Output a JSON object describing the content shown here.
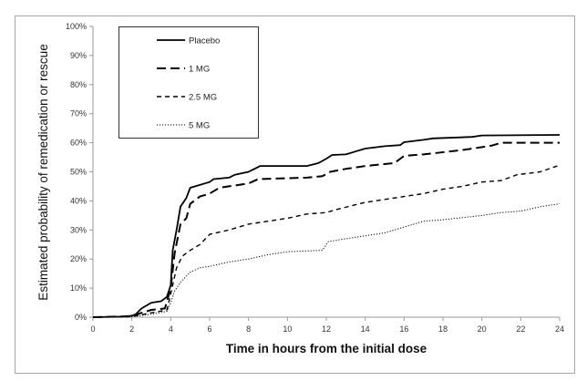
{
  "chart_data": {
    "type": "line",
    "title": "",
    "xlabel": "Time in hours from the initial dose",
    "ylabel": "Estimated probability of remedication or rescue",
    "xlim": [
      0,
      24
    ],
    "ylim": [
      0,
      100
    ],
    "x_ticks": [
      "0",
      "2",
      "4",
      "6",
      "8",
      "10",
      "12",
      "14",
      "16",
      "18",
      "20",
      "22",
      "24"
    ],
    "y_ticks": [
      "0%",
      "10%",
      "20%",
      "30%",
      "40%",
      "50%",
      "60%",
      "70%",
      "80%",
      "90%",
      "100%"
    ],
    "grid": false,
    "legend_position": "top-left",
    "series": [
      {
        "name": "Placebo",
        "style": "solid",
        "color": "#000000",
        "points": [
          [
            0,
            0
          ],
          [
            1.5,
            0.2
          ],
          [
            2,
            0.5
          ],
          [
            2.2,
            1
          ],
          [
            2.5,
            3
          ],
          [
            3,
            5
          ],
          [
            3.5,
            5.5
          ],
          [
            3.8,
            7
          ],
          [
            4,
            11
          ],
          [
            4.1,
            23
          ],
          [
            4.3,
            30
          ],
          [
            4.5,
            38
          ],
          [
            4.8,
            41
          ],
          [
            5,
            44.5
          ],
          [
            5.5,
            45.5
          ],
          [
            6,
            46.5
          ],
          [
            6.2,
            47.5
          ],
          [
            7,
            48
          ],
          [
            7.3,
            49
          ],
          [
            8,
            50
          ],
          [
            8.3,
            51
          ],
          [
            8.6,
            52
          ],
          [
            11,
            52
          ],
          [
            11.6,
            53
          ],
          [
            12,
            54.5
          ],
          [
            12.3,
            55.8
          ],
          [
            13,
            56
          ],
          [
            13.5,
            57
          ],
          [
            14,
            58
          ],
          [
            15,
            58.8
          ],
          [
            15.8,
            59.2
          ],
          [
            16,
            60.2
          ],
          [
            17,
            61
          ],
          [
            17.5,
            61.5
          ],
          [
            19.5,
            62
          ],
          [
            20,
            62.5
          ],
          [
            24,
            62.7
          ]
        ]
      },
      {
        "name": "1 MG",
        "style": "longdash",
        "color": "#000000",
        "points": [
          [
            0,
            0
          ],
          [
            2,
            0.3
          ],
          [
            2.5,
            1.5
          ],
          [
            3,
            2.5
          ],
          [
            3.7,
            3
          ],
          [
            4,
            10
          ],
          [
            4.2,
            22
          ],
          [
            4.5,
            32
          ],
          [
            4.8,
            34
          ],
          [
            5,
            39
          ],
          [
            5.5,
            41.5
          ],
          [
            6,
            42.5
          ],
          [
            6.5,
            44.5
          ],
          [
            7,
            45
          ],
          [
            8,
            46
          ],
          [
            8.5,
            47.5
          ],
          [
            11,
            48
          ],
          [
            11.8,
            48.5
          ],
          [
            12.2,
            50
          ],
          [
            13,
            51
          ],
          [
            14,
            52
          ],
          [
            15.5,
            53
          ],
          [
            16,
            55.5
          ],
          [
            17,
            56
          ],
          [
            19,
            57.5
          ],
          [
            20.5,
            59
          ],
          [
            21,
            60
          ],
          [
            24,
            60
          ]
        ]
      },
      {
        "name": "2.5 MG",
        "style": "dash",
        "color": "#000000",
        "points": [
          [
            0,
            0
          ],
          [
            2,
            0.2
          ],
          [
            3,
            1.5
          ],
          [
            3.8,
            2.5
          ],
          [
            4,
            8
          ],
          [
            4.3,
            17
          ],
          [
            4.6,
            21
          ],
          [
            5,
            23
          ],
          [
            5.5,
            25
          ],
          [
            6,
            28.5
          ],
          [
            7,
            30
          ],
          [
            7.5,
            31
          ],
          [
            8,
            32
          ],
          [
            9,
            33
          ],
          [
            10,
            34
          ],
          [
            11,
            35.5
          ],
          [
            12,
            36
          ],
          [
            12.5,
            37
          ],
          [
            14,
            39.5
          ],
          [
            15,
            40.5
          ],
          [
            16,
            41.5
          ],
          [
            17,
            42.5
          ],
          [
            18,
            44
          ],
          [
            19,
            45
          ],
          [
            20,
            46.5
          ],
          [
            21,
            47
          ],
          [
            21.8,
            49
          ],
          [
            23,
            50
          ],
          [
            24,
            52.3
          ]
        ]
      },
      {
        "name": "5 MG",
        "style": "dot",
        "color": "#000000",
        "points": [
          [
            0,
            0
          ],
          [
            2,
            0.2
          ],
          [
            3,
            1
          ],
          [
            3.8,
            2
          ],
          [
            4,
            5
          ],
          [
            4.2,
            9
          ],
          [
            4.5,
            12
          ],
          [
            5,
            15.5
          ],
          [
            5.5,
            17
          ],
          [
            6,
            17.5
          ],
          [
            7,
            19
          ],
          [
            8,
            20
          ],
          [
            9,
            21.5
          ],
          [
            10,
            22.5
          ],
          [
            11.8,
            23
          ],
          [
            12.1,
            26
          ],
          [
            13,
            27
          ],
          [
            14,
            28
          ],
          [
            15,
            29
          ],
          [
            16,
            31
          ],
          [
            17,
            33
          ],
          [
            18,
            33.5
          ],
          [
            20,
            35
          ],
          [
            21,
            36
          ],
          [
            22,
            36.5
          ],
          [
            23,
            38
          ],
          [
            24,
            39
          ]
        ]
      }
    ]
  }
}
